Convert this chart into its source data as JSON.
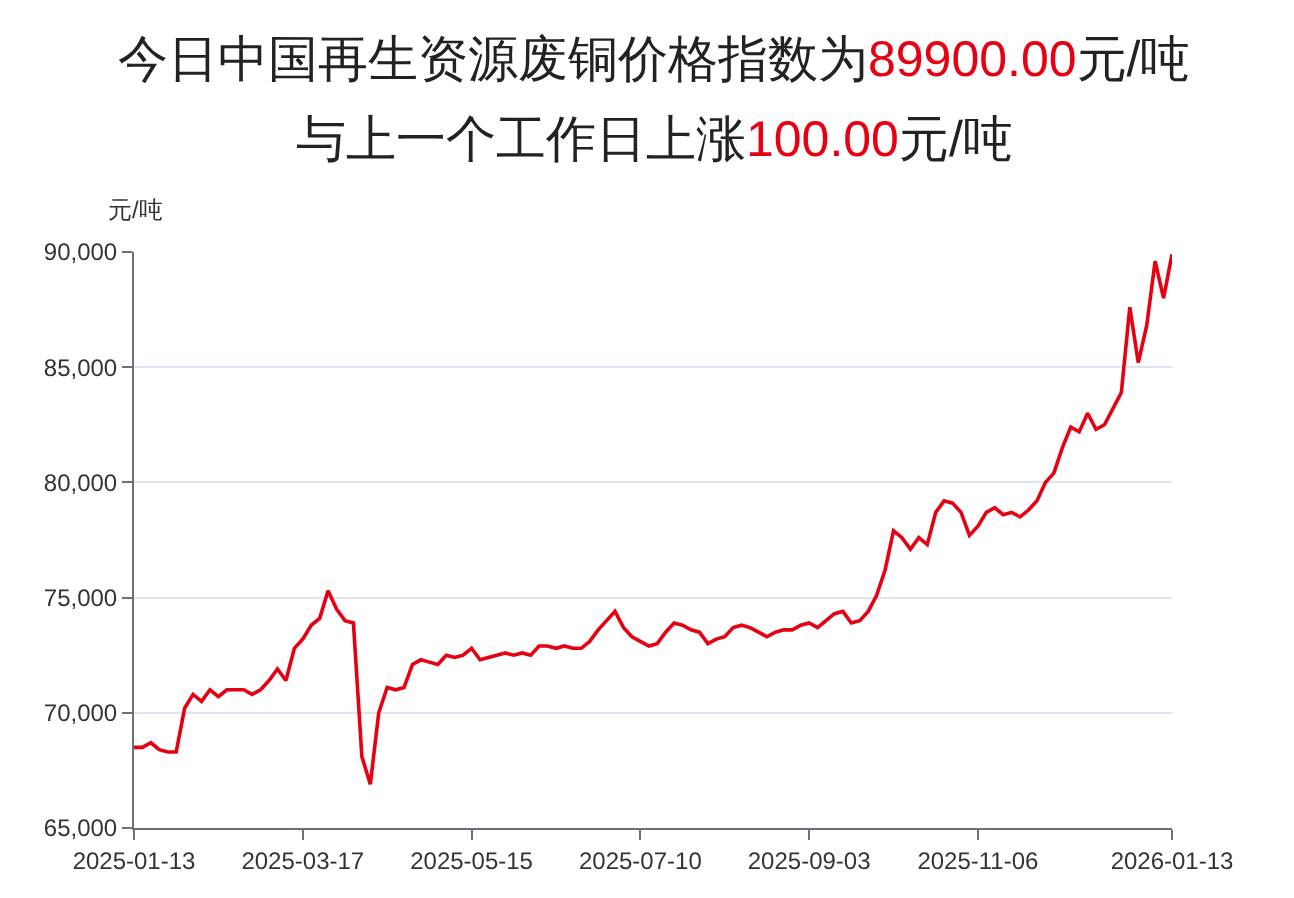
{
  "chart_data": {
    "type": "line",
    "title": "今日中国再生资源废铜价格指数为89900.00元/吨",
    "subtitle": "与上一个工作日上涨100.00元/吨",
    "ylabel": "元/吨",
    "categories": [
      "2025-01-13",
      null,
      null,
      null,
      null,
      null,
      null,
      null,
      null,
      null,
      null,
      null,
      null,
      null,
      null,
      null,
      null,
      null,
      null,
      null,
      "2025-03-17",
      null,
      null,
      null,
      null,
      null,
      null,
      null,
      null,
      null,
      null,
      null,
      null,
      null,
      null,
      null,
      null,
      null,
      null,
      null,
      "2025-05-15",
      null,
      null,
      null,
      null,
      null,
      null,
      null,
      null,
      null,
      null,
      null,
      null,
      null,
      null,
      null,
      null,
      null,
      null,
      null,
      "2025-07-10",
      null,
      null,
      null,
      null,
      null,
      null,
      null,
      null,
      null,
      null,
      null,
      null,
      null,
      null,
      null,
      null,
      null,
      null,
      null,
      "2025-09-03",
      null,
      null,
      null,
      null,
      null,
      null,
      null,
      null,
      null,
      null,
      null,
      null,
      null,
      null,
      null,
      null,
      null,
      null,
      null,
      "2025-11-06",
      null,
      null,
      null,
      null,
      null,
      null,
      null,
      null,
      null,
      null,
      null,
      null,
      null,
      null,
      null,
      null,
      null,
      null,
      null,
      null,
      null,
      null,
      "2026-01-13"
    ],
    "series": [
      {
        "color": "#e60012",
        "values": [
          68500,
          68500,
          68700,
          68400,
          68300,
          68300,
          70200,
          70800,
          70500,
          71000,
          70700,
          71000,
          71000,
          71000,
          70800,
          71000,
          71400,
          71900,
          71400,
          72800,
          73200,
          73800,
          74100,
          75300,
          74500,
          74000,
          73900,
          68100,
          66900,
          70000,
          71100,
          71000,
          71100,
          72100,
          72300,
          72200,
          72100,
          72500,
          72400,
          72500,
          72800,
          72300,
          72400,
          72500,
          72600,
          72500,
          72600,
          72500,
          72900,
          72900,
          72800,
          72900,
          72800,
          72800,
          73100,
          73600,
          74000,
          74400,
          73700,
          73300,
          73100,
          72900,
          73000,
          73500,
          73900,
          73800,
          73600,
          73500,
          73000,
          73200,
          73300,
          73700,
          73800,
          73700,
          73500,
          73300,
          73500,
          73600,
          73600,
          73800,
          73900,
          73700,
          74000,
          74300,
          74400,
          73900,
          74000,
          74400,
          75100,
          76200,
          77900,
          77600,
          77100,
          77600,
          77300,
          78700,
          79200,
          79100,
          78700,
          77700,
          78100,
          78700,
          78900,
          78600,
          78700,
          78500,
          78800,
          79200,
          80000,
          80400,
          81500,
          82400,
          82200,
          83000,
          82300,
          82500,
          83200,
          83900,
          87600,
          85200,
          86800,
          89600,
          88000,
          89900
        ]
      }
    ],
    "ylim": [
      65000,
      90000
    ],
    "yticks": [
      {
        "value": 65000,
        "label": "65,000"
      },
      {
        "value": 70000,
        "label": "70,000"
      },
      {
        "value": 75000,
        "label": "75,000"
      },
      {
        "value": 80000,
        "label": "80,000"
      },
      {
        "value": 85000,
        "label": "85,000"
      },
      {
        "value": 90000,
        "label": "90,000"
      }
    ],
    "grid": "y",
    "marker": "none",
    "line_style": "solid"
  }
}
